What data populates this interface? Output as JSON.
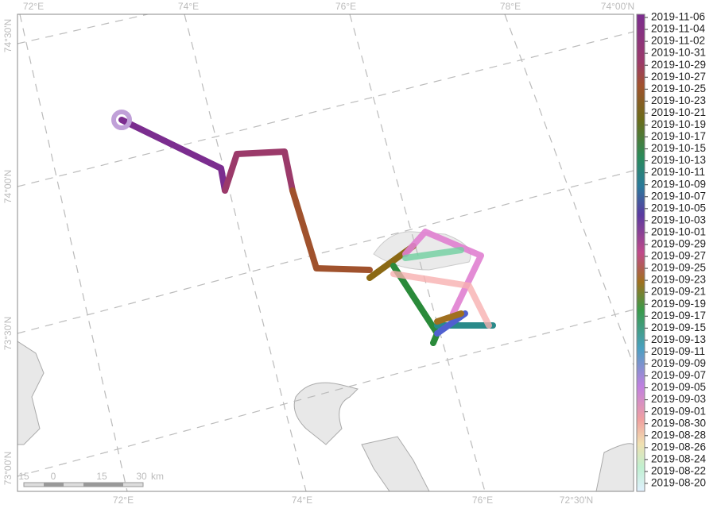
{
  "map": {
    "top_labels": [
      "72°E",
      "74°E",
      "76°E",
      "78°E",
      "74°00'N"
    ],
    "bottom_labels": [
      "72°E",
      "74°E",
      "76°E",
      "72°30'N"
    ],
    "left_labels": [
      "74°30'N",
      "74°00'N",
      "73°30'N",
      "73°00'N"
    ],
    "scale_bar": [
      "15",
      "0",
      "15",
      "30",
      "km"
    ]
  },
  "colorbar": {
    "labels": [
      "2019-11-06",
      "2019-11-04",
      "2019-11-02",
      "2019-10-31",
      "2019-10-29",
      "2019-10-27",
      "2019-10-25",
      "2019-10-23",
      "2019-10-21",
      "2019-10-19",
      "2019-10-17",
      "2019-10-15",
      "2019-10-13",
      "2019-10-11",
      "2019-10-09",
      "2019-10-07",
      "2019-10-05",
      "2019-10-03",
      "2019-10-01",
      "2019-09-29",
      "2019-09-27",
      "2019-09-25",
      "2019-09-23",
      "2019-09-21",
      "2019-09-19",
      "2019-09-17",
      "2019-09-15",
      "2019-09-13",
      "2019-09-11",
      "2019-09-09",
      "2019-09-07",
      "2019-09-05",
      "2019-09-03",
      "2019-09-01",
      "2019-08-30",
      "2019-08-28",
      "2019-08-26",
      "2019-08-24",
      "2019-08-22",
      "2019-08-20"
    ]
  }
}
